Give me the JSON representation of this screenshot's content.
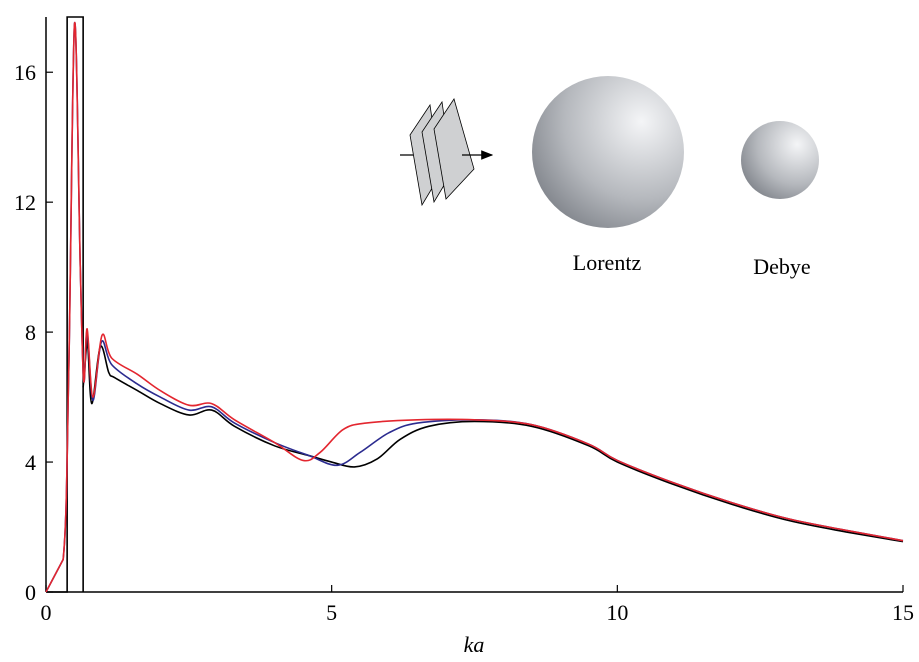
{
  "chart_data": {
    "type": "line",
    "x_label": "ka",
    "annotations": [
      "Lorentz",
      "Debye"
    ],
    "xlim": [
      0,
      15
    ],
    "ylim": [
      0,
      17.7
    ],
    "xticks": [
      0,
      5,
      10,
      15
    ],
    "yticks": [
      0,
      4,
      8,
      12,
      16
    ],
    "series": [
      {
        "color": "#000000",
        "x": [
          0,
          0.37,
          0.37,
          0.65,
          0.65
        ],
        "values": [
          0,
          0,
          17.7,
          17.7,
          0
        ]
      },
      {
        "color": "#000000",
        "x": [
          0.65,
          0.72,
          0.8,
          0.95,
          1.1,
          1.2,
          1.6,
          2.0,
          2.5,
          2.9,
          3.3,
          4.0,
          4.6,
          5.0,
          5.4,
          5.8,
          6.2,
          6.7,
          7.5,
          8.5,
          9.5,
          10,
          11,
          12,
          13,
          14,
          15
        ],
        "values": [
          6.3,
          7.8,
          5.8,
          7.55,
          6.75,
          6.6,
          6.2,
          5.8,
          5.45,
          5.6,
          5.1,
          4.5,
          4.2,
          4.0,
          3.85,
          4.1,
          4.7,
          5.1,
          5.25,
          5.1,
          4.5,
          4.0,
          3.3,
          2.7,
          2.2,
          1.85,
          1.55
        ]
      },
      {
        "color": "#2b2b8f",
        "x": [
          0,
          0.3,
          0.4,
          0.5,
          0.6,
          0.66,
          0.72,
          0.82,
          0.97,
          1.15,
          1.6,
          2.0,
          2.5,
          2.9,
          3.3,
          4.0,
          4.6,
          5.1,
          5.5,
          6.0,
          6.5,
          7.5,
          8.5,
          9.5,
          10,
          11,
          12,
          13,
          14,
          15
        ],
        "values": [
          0,
          1,
          7,
          17.5,
          10,
          6.5,
          8,
          5.9,
          7.7,
          7.0,
          6.4,
          6.0,
          5.6,
          5.7,
          5.2,
          4.6,
          4.2,
          3.9,
          4.3,
          4.9,
          5.2,
          5.3,
          5.15,
          4.55,
          4.05,
          3.35,
          2.75,
          2.25,
          1.9,
          1.58
        ]
      },
      {
        "color": "#e3262f",
        "x": [
          0,
          0.3,
          0.4,
          0.5,
          0.6,
          0.66,
          0.72,
          0.82,
          0.98,
          1.15,
          1.6,
          2.0,
          2.5,
          2.9,
          3.3,
          4.0,
          4.5,
          4.8,
          5.2,
          5.6,
          6.5,
          7.5,
          8.5,
          9.5,
          10,
          11,
          12,
          13,
          14,
          15
        ],
        "values": [
          0,
          1,
          7,
          17.5,
          10,
          6.5,
          8.1,
          6.0,
          7.9,
          7.2,
          6.7,
          6.2,
          5.75,
          5.8,
          5.3,
          4.6,
          4.05,
          4.3,
          5.0,
          5.2,
          5.3,
          5.3,
          5.15,
          4.55,
          4.05,
          3.35,
          2.75,
          2.25,
          1.9,
          1.58
        ]
      }
    ]
  }
}
